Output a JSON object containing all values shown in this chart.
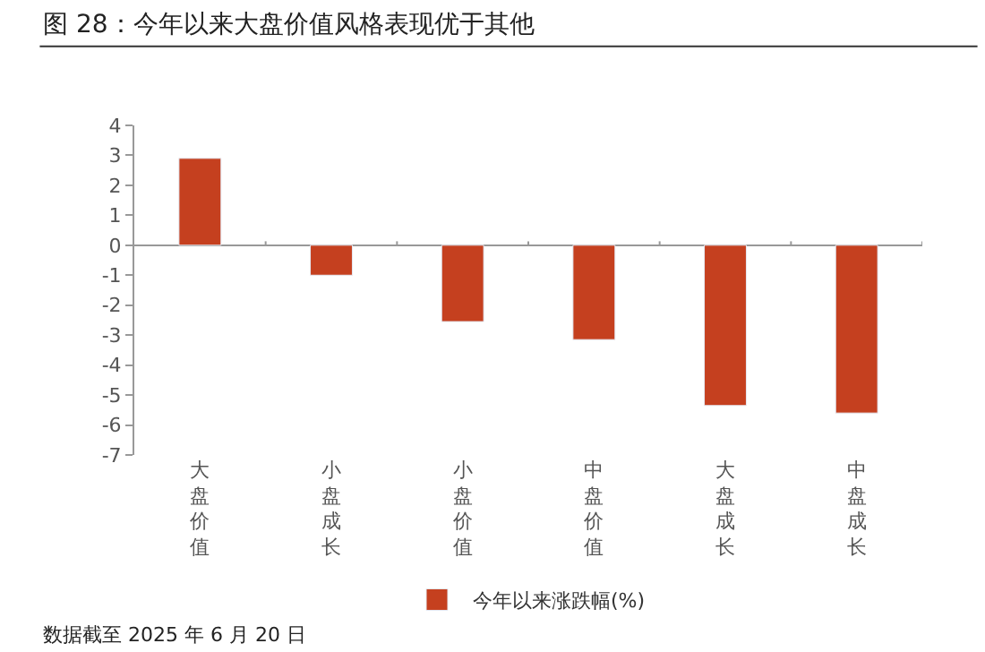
{
  "chart_data": {
    "type": "bar",
    "title": "图 28：今年以来大盘价值风格表现优于其他",
    "categories": [
      "大盘价值",
      "小盘成长",
      "小盘价值",
      "中盘价值",
      "大盘成长",
      "中盘成长"
    ],
    "series": [
      {
        "name": "今年以来涨跌幅(%)",
        "color": "#c5401f",
        "values": [
          2.9,
          -1.0,
          -2.55,
          -3.15,
          -5.35,
          -5.6
        ]
      }
    ],
    "ylim": [
      -7,
      4
    ],
    "yticks": [
      -7,
      -6,
      -5,
      -4,
      -3,
      -2,
      -1,
      0,
      1,
      2,
      3,
      4
    ],
    "legend": "bottom",
    "annotations": [
      "数据截至 2025 年 6 月 20 日"
    ]
  }
}
